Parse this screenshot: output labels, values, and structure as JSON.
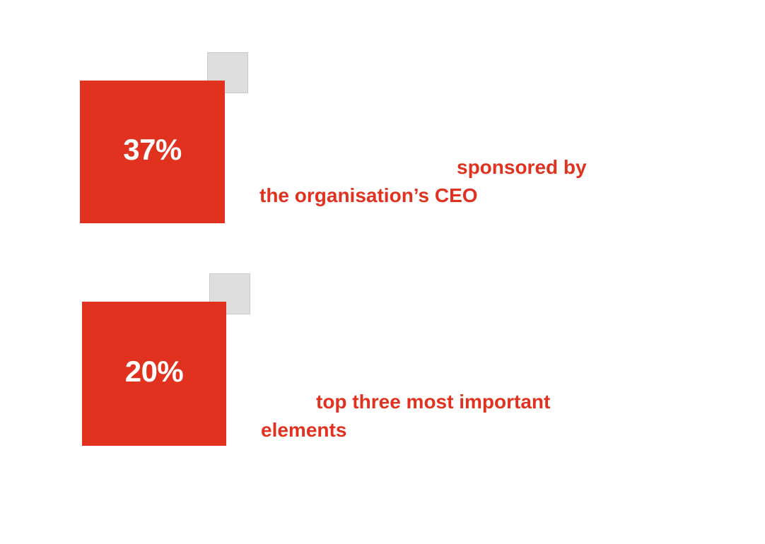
{
  "colors": {
    "accent": "#e0321f",
    "square": "#dedede",
    "background": "#ffffff"
  },
  "stats": [
    {
      "value": "37%",
      "caption_line1": "sponsored by",
      "caption_line2": "the organisation’s CEO"
    },
    {
      "value": "20%",
      "caption_line1": "top three most important",
      "caption_line2": "elements"
    }
  ]
}
